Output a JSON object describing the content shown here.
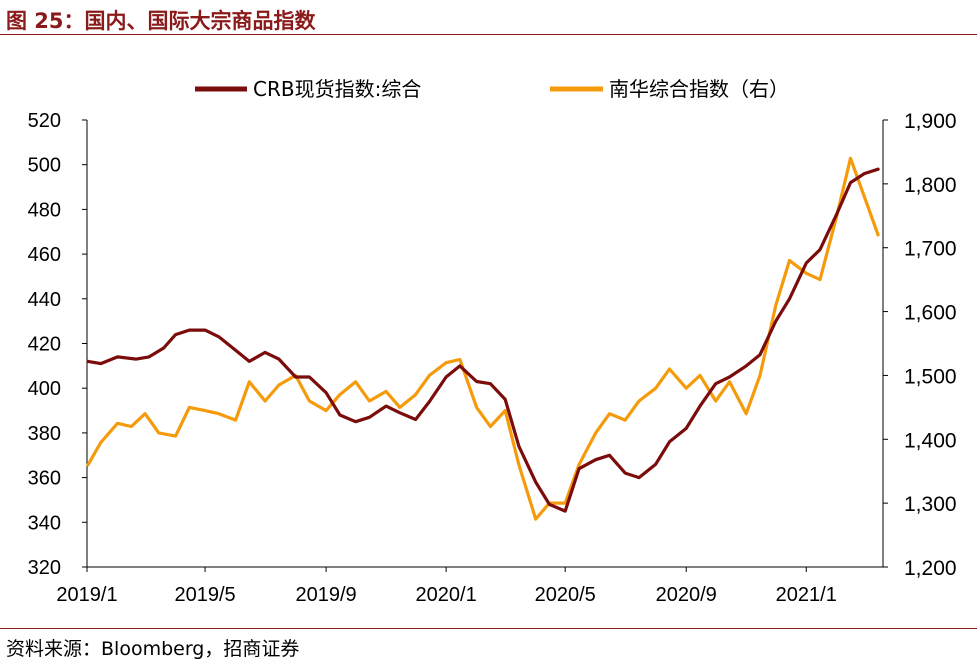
{
  "header": {
    "title": "图 25：国内、国际大宗商品指数"
  },
  "footer": {
    "source": "资料来源：Bloomberg，招商证券"
  },
  "colors": {
    "brand": "#8b1a1a",
    "crb": "#7b0c0c",
    "nanhua": "#f59b0b"
  },
  "chart_data": {
    "type": "line",
    "title": "国内、国际大宗商品指数",
    "x_tick_labels": [
      "2019/1",
      "2019/5",
      "2019/9",
      "2020/1",
      "2020/5",
      "2020/9",
      "2021/1"
    ],
    "x_range": [
      "2019/1",
      "2021/3"
    ],
    "left_axis": {
      "ylim": [
        320,
        520
      ],
      "ticks": [
        "320",
        "340",
        "360",
        "380",
        "400",
        "420",
        "440",
        "460",
        "480",
        "500",
        "520"
      ]
    },
    "right_axis": {
      "ylim": [
        1200,
        1900
      ],
      "ticks": [
        "1,200",
        "1,300",
        "1,400",
        "1,500",
        "1,600",
        "1,700",
        "1,800",
        "1,900"
      ]
    },
    "legend_position": "top",
    "grid": false,
    "series": [
      {
        "name": "CRB现货指数:综合",
        "axis": "left",
        "color": "#7b0c0c",
        "points": [
          [
            "2019-01-02",
            412
          ],
          [
            "2019-01-15",
            411
          ],
          [
            "2019-02-01",
            414
          ],
          [
            "2019-02-20",
            413
          ],
          [
            "2019-03-05",
            414
          ],
          [
            "2019-03-20",
            418
          ],
          [
            "2019-04-01",
            424
          ],
          [
            "2019-04-15",
            426
          ],
          [
            "2019-05-01",
            426
          ],
          [
            "2019-05-15",
            423
          ],
          [
            "2019-06-01",
            417
          ],
          [
            "2019-06-15",
            412
          ],
          [
            "2019-07-01",
            416
          ],
          [
            "2019-07-15",
            413
          ],
          [
            "2019-08-01",
            405
          ],
          [
            "2019-08-15",
            405
          ],
          [
            "2019-09-01",
            398
          ],
          [
            "2019-09-15",
            388
          ],
          [
            "2019-10-01",
            385
          ],
          [
            "2019-10-15",
            387
          ],
          [
            "2019-11-01",
            392
          ],
          [
            "2019-11-15",
            389
          ],
          [
            "2019-12-01",
            386
          ],
          [
            "2019-12-15",
            394
          ],
          [
            "2020-01-01",
            405
          ],
          [
            "2020-01-15",
            410
          ],
          [
            "2020-02-01",
            403
          ],
          [
            "2020-02-15",
            402
          ],
          [
            "2020-03-01",
            395
          ],
          [
            "2020-03-15",
            374
          ],
          [
            "2020-04-01",
            358
          ],
          [
            "2020-04-15",
            348
          ],
          [
            "2020-05-01",
            345
          ],
          [
            "2020-05-15",
            364
          ],
          [
            "2020-06-01",
            368
          ],
          [
            "2020-06-15",
            370
          ],
          [
            "2020-07-01",
            362
          ],
          [
            "2020-07-15",
            360
          ],
          [
            "2020-08-01",
            366
          ],
          [
            "2020-08-15",
            376
          ],
          [
            "2020-09-01",
            382
          ],
          [
            "2020-09-15",
            392
          ],
          [
            "2020-10-01",
            402
          ],
          [
            "2020-10-15",
            405
          ],
          [
            "2020-11-01",
            410
          ],
          [
            "2020-11-15",
            415
          ],
          [
            "2020-12-01",
            430
          ],
          [
            "2020-12-15",
            440
          ],
          [
            "2021-01-01",
            456
          ],
          [
            "2021-01-15",
            462
          ],
          [
            "2021-02-01",
            478
          ],
          [
            "2021-02-15",
            492
          ],
          [
            "2021-03-01",
            496
          ],
          [
            "2021-03-15",
            498
          ]
        ]
      },
      {
        "name": "南华综合指数（右）",
        "axis": "right",
        "color": "#f59b0b",
        "points": [
          [
            "2019-01-02",
            1360
          ],
          [
            "2019-01-15",
            1395
          ],
          [
            "2019-02-01",
            1425
          ],
          [
            "2019-02-15",
            1420
          ],
          [
            "2019-03-01",
            1440
          ],
          [
            "2019-03-15",
            1410
          ],
          [
            "2019-04-01",
            1405
          ],
          [
            "2019-04-15",
            1450
          ],
          [
            "2019-05-01",
            1445
          ],
          [
            "2019-05-15",
            1440
          ],
          [
            "2019-06-01",
            1430
          ],
          [
            "2019-06-15",
            1490
          ],
          [
            "2019-07-01",
            1460
          ],
          [
            "2019-07-15",
            1485
          ],
          [
            "2019-08-01",
            1500
          ],
          [
            "2019-08-15",
            1460
          ],
          [
            "2019-09-01",
            1445
          ],
          [
            "2019-09-15",
            1470
          ],
          [
            "2019-10-01",
            1490
          ],
          [
            "2019-10-15",
            1460
          ],
          [
            "2019-11-01",
            1475
          ],
          [
            "2019-11-15",
            1450
          ],
          [
            "2019-12-01",
            1470
          ],
          [
            "2019-12-15",
            1500
          ],
          [
            "2020-01-01",
            1520
          ],
          [
            "2020-01-15",
            1525
          ],
          [
            "2020-02-01",
            1450
          ],
          [
            "2020-02-15",
            1420
          ],
          [
            "2020-03-01",
            1445
          ],
          [
            "2020-03-15",
            1360
          ],
          [
            "2020-04-01",
            1275
          ],
          [
            "2020-04-15",
            1300
          ],
          [
            "2020-05-01",
            1300
          ],
          [
            "2020-05-15",
            1360
          ],
          [
            "2020-06-01",
            1410
          ],
          [
            "2020-06-15",
            1440
          ],
          [
            "2020-07-01",
            1430
          ],
          [
            "2020-07-15",
            1460
          ],
          [
            "2020-08-01",
            1480
          ],
          [
            "2020-08-15",
            1510
          ],
          [
            "2020-09-01",
            1480
          ],
          [
            "2020-09-15",
            1500
          ],
          [
            "2020-10-01",
            1460
          ],
          [
            "2020-10-15",
            1490
          ],
          [
            "2020-11-01",
            1440
          ],
          [
            "2020-11-15",
            1500
          ],
          [
            "2020-12-01",
            1610
          ],
          [
            "2020-12-15",
            1680
          ],
          [
            "2021-01-01",
            1660
          ],
          [
            "2021-01-15",
            1650
          ],
          [
            "2021-02-01",
            1750
          ],
          [
            "2021-02-15",
            1840
          ],
          [
            "2021-03-01",
            1780
          ],
          [
            "2021-03-15",
            1720
          ]
        ]
      }
    ]
  }
}
